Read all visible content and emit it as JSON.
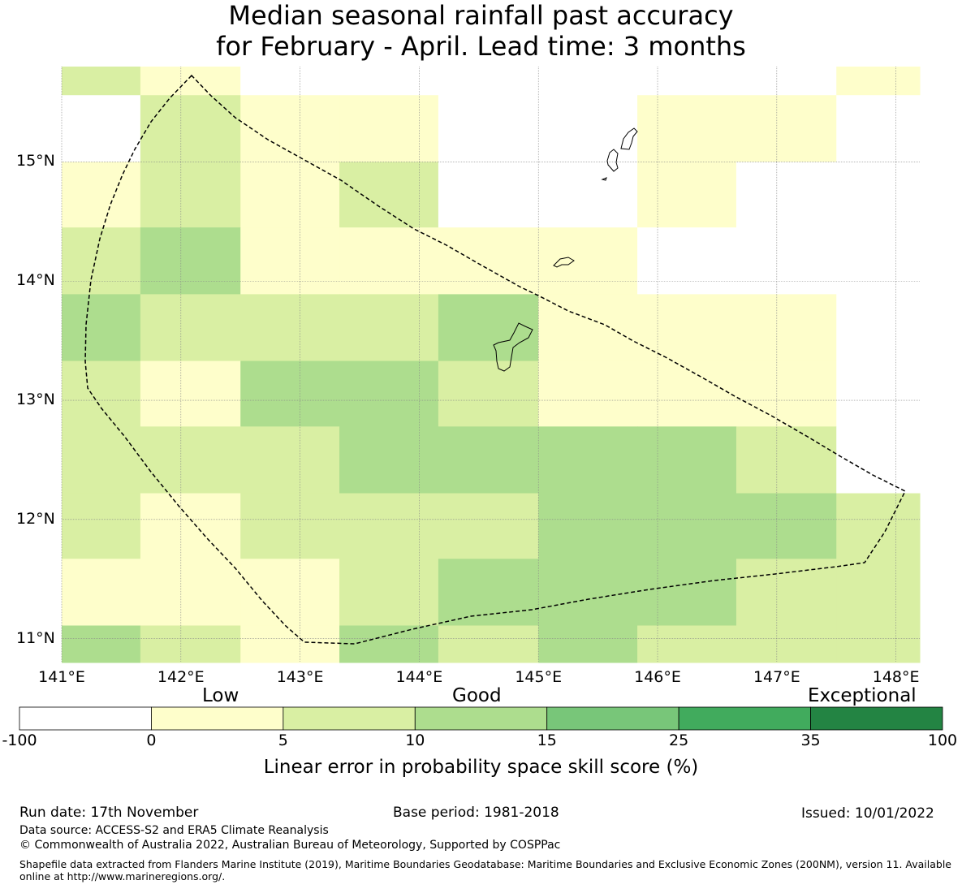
{
  "title": {
    "line1": "Median seasonal rainfall past accuracy",
    "line2": "for February - April. Lead time: 3 months"
  },
  "map": {
    "lon_labels": [
      "141°E",
      "142°E",
      "143°E",
      "144°E",
      "145°E",
      "146°E",
      "147°E",
      "148°E"
    ],
    "lat_labels": [
      "15°N",
      "14°N",
      "13°N",
      "12°N",
      "11°N"
    ],
    "grid_lons": [
      141,
      142,
      143,
      144,
      145,
      146,
      147,
      148
    ],
    "grid_lats": [
      15,
      14,
      13,
      12,
      11
    ],
    "extent": {
      "lon_min": 141,
      "lon_max": 148.2,
      "lat_min": 10.8,
      "lat_max": 15.8
    },
    "cell_lon_edges": [
      141,
      141.66,
      142.5,
      143.33,
      144.16,
      145,
      145.83,
      146.66,
      147.5,
      148.2
    ],
    "cell_lat_edges": [
      15.8,
      15.56,
      15.0,
      14.45,
      13.89,
      13.33,
      12.78,
      12.22,
      11.67,
      11.11,
      10.8
    ],
    "categories_grid": [
      [
        2,
        1,
        0,
        0,
        0,
        0,
        0,
        0,
        1
      ],
      [
        0,
        2,
        1,
        1,
        0,
        0,
        1,
        1,
        0
      ],
      [
        1,
        2,
        1,
        2,
        0,
        0,
        1,
        0,
        0
      ],
      [
        2,
        3,
        1,
        1,
        1,
        1,
        0,
        0,
        0
      ],
      [
        3,
        2,
        2,
        2,
        3,
        1,
        1,
        1,
        0
      ],
      [
        2,
        1,
        3,
        3,
        2,
        1,
        1,
        1,
        0
      ],
      [
        2,
        2,
        2,
        3,
        3,
        3,
        3,
        2,
        0
      ],
      [
        2,
        1,
        2,
        2,
        2,
        3,
        3,
        3,
        2
      ],
      [
        1,
        1,
        1,
        2,
        3,
        3,
        3,
        2,
        2
      ],
      [
        3,
        2,
        1,
        3,
        2,
        3,
        2,
        2,
        2
      ]
    ],
    "colors": {
      "grid_line": "#888888",
      "boundary": "#000000",
      "coastline": "#000000"
    }
  },
  "colorbar": {
    "label_low": "Low",
    "label_good": "Good",
    "label_exceptional": "Exceptional",
    "ticks": [
      "-100",
      "0",
      "5",
      "10",
      "15",
      "25",
      "35",
      "100"
    ],
    "bins": [
      {
        "from": -100,
        "to": 0,
        "color": "#ffffff"
      },
      {
        "from": 0,
        "to": 5,
        "color": "#fefecb"
      },
      {
        "from": 5,
        "to": 10,
        "color": "#d9efa3"
      },
      {
        "from": 10,
        "to": 15,
        "color": "#addd8e"
      },
      {
        "from": 15,
        "to": 25,
        "color": "#78c679"
      },
      {
        "from": 25,
        "to": 35,
        "color": "#41ab5d"
      },
      {
        "from": 35,
        "to": 100,
        "color": "#238443"
      }
    ],
    "axis_title": "Linear error in probability space skill score (%)"
  },
  "footer": {
    "run_date": "Run date: 17th November",
    "base_period": "Base period: 1981-2018",
    "issued": "Issued: 10/01/2022",
    "data_source": "Data source: ACCESS-S2 and ERA5 Climate Reanalysis",
    "copyright": "© Commonwealth of Australia 2022, Australian Bureau of Meteorology, Supported by COSPPac",
    "shapefile_credit": "Shapefile data extracted from Flanders Marine Institute (2019), Maritime Boundaries Geodatabase: Maritime Boundaries and Exclusive Economic Zones (200NM), version 11. Available online at http://www.marineregions.org/."
  }
}
